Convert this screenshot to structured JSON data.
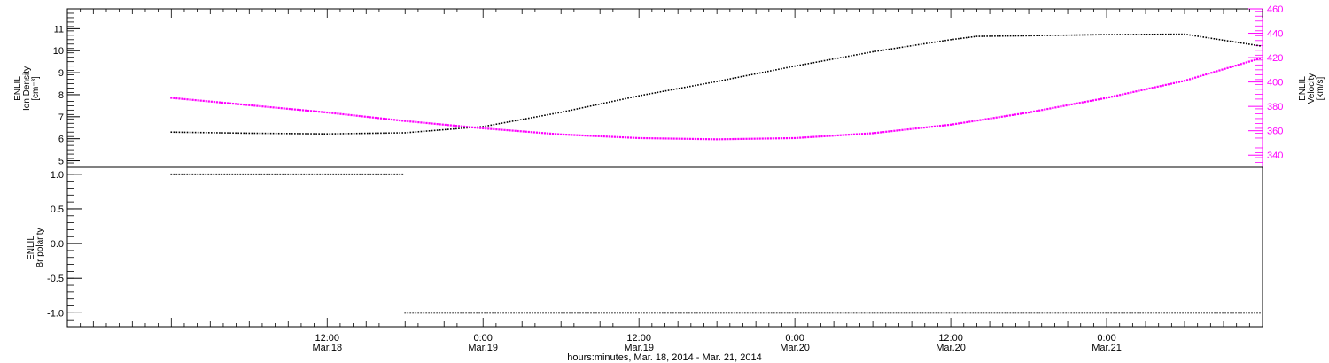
{
  "chart_data": [
    {
      "type": "line",
      "panel": "top",
      "ylabel_lines": [
        "ENLIL",
        "Ion Density",
        "[cm⁻³]"
      ],
      "y2label_lines": [
        "ENLIL",
        "Velocity",
        "[km/s]"
      ],
      "ylim": [
        4.7,
        11.9
      ],
      "y2lim": [
        330,
        460
      ],
      "yticks": [
        5,
        6,
        7,
        8,
        9,
        10,
        11
      ],
      "y2ticks": [
        340,
        360,
        380,
        400,
        420,
        440,
        460
      ],
      "grid": false,
      "series": [
        {
          "axis": "left",
          "color": "#000000",
          "points": [
            [
              "2014-03-18 00:00",
              6.3
            ],
            [
              "2014-03-18 06:00",
              6.25
            ],
            [
              "2014-03-18 12:00",
              6.22
            ],
            [
              "2014-03-18 18:00",
              6.27
            ],
            [
              "2014-03-19 00:00",
              6.55
            ],
            [
              "2014-03-19 06:00",
              7.2
            ],
            [
              "2014-03-19 12:00",
              7.95
            ],
            [
              "2014-03-19 18:00",
              8.6
            ],
            [
              "2014-03-20 00:00",
              9.3
            ],
            [
              "2014-03-20 06:00",
              9.95
            ],
            [
              "2014-03-20 12:00",
              10.5
            ],
            [
              "2014-03-20 14:00",
              10.65
            ],
            [
              "2014-03-20 18:00",
              10.68
            ],
            [
              "2014-03-21 00:00",
              10.73
            ],
            [
              "2014-03-21 06:00",
              10.75
            ],
            [
              "2014-03-21 12:00",
              10.2
            ]
          ]
        },
        {
          "axis": "right",
          "color": "#ff00ff",
          "points": [
            [
              "2014-03-18 00:00",
              387
            ],
            [
              "2014-03-18 06:00",
              381
            ],
            [
              "2014-03-18 12:00",
              375
            ],
            [
              "2014-03-18 18:00",
              368
            ],
            [
              "2014-03-19 00:00",
              362
            ],
            [
              "2014-03-19 06:00",
              357
            ],
            [
              "2014-03-19 12:00",
              354
            ],
            [
              "2014-03-19 18:00",
              353
            ],
            [
              "2014-03-20 00:00",
              354
            ],
            [
              "2014-03-20 06:00",
              358
            ],
            [
              "2014-03-20 12:00",
              365
            ],
            [
              "2014-03-20 18:00",
              375
            ],
            [
              "2014-03-21 00:00",
              387
            ],
            [
              "2014-03-21 06:00",
              401
            ],
            [
              "2014-03-21 12:00",
              420
            ]
          ]
        }
      ]
    },
    {
      "type": "line",
      "panel": "bottom",
      "ylabel_lines": [
        "ENLIL",
        "Br polarity"
      ],
      "ylim": [
        -1.2,
        1.1
      ],
      "yticks": [
        -1.0,
        -0.5,
        0.0,
        0.5,
        1.0
      ],
      "yticklabels": [
        "-1.0",
        "-0.5",
        "0.0",
        "0.5",
        "1.0"
      ],
      "grid": false,
      "series": [
        {
          "color": "#000000",
          "segments": [
            [
              [
                "2014-03-18 00:00",
                1
              ],
              [
                "2014-03-18 18:00",
                1
              ]
            ],
            [
              [
                "2014-03-18 18:00",
                -1
              ],
              [
                "2014-03-21 12:00",
                -1
              ]
            ]
          ]
        }
      ]
    }
  ],
  "x_axis": {
    "xlim": [
      "2014-03-17 16:00",
      "2014-03-21 12:00"
    ],
    "ticks": [
      {
        "t": "2014-03-18 12:00",
        "line1": "12:00",
        "line2": "Mar.18"
      },
      {
        "t": "2014-03-19 00:00",
        "line1": "0:00",
        "line2": "Mar.19"
      },
      {
        "t": "2014-03-19 12:00",
        "line1": "12:00",
        "line2": "Mar.19"
      },
      {
        "t": "2014-03-20 00:00",
        "line1": "0:00",
        "line2": "Mar.20"
      },
      {
        "t": "2014-03-20 12:00",
        "line1": "12:00",
        "line2": "Mar.20"
      },
      {
        "t": "2014-03-21 00:00",
        "line1": "0:00",
        "line2": "Mar.21"
      }
    ],
    "label": "hours:minutes, Mar. 18, 2014 - Mar. 21, 2014"
  },
  "colors": {
    "left": "#000000",
    "right": "#ff00ff"
  }
}
